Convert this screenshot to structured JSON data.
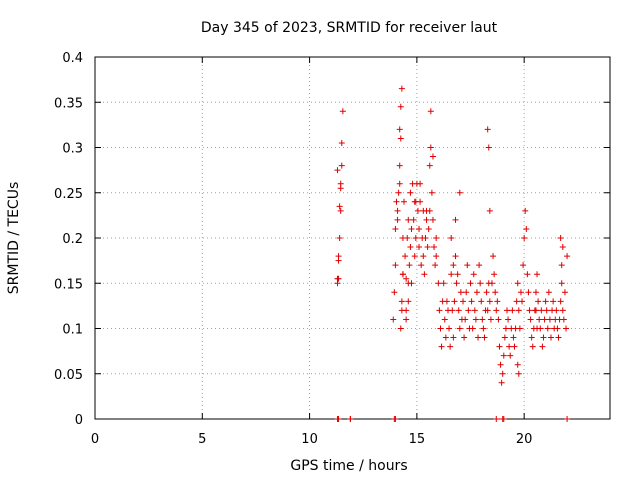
{
  "chart_data": {
    "type": "scatter",
    "title": "Day 345 of 2023, SRMTID for receiver laut",
    "xlabel": "GPS time / hours",
    "ylabel": "SRMTID / TECUs",
    "xlim": [
      0,
      24
    ],
    "ylim": [
      0,
      0.4
    ],
    "xticks": [
      0,
      5,
      10,
      15,
      20
    ],
    "xtick_labels": [
      "0",
      "5",
      "10",
      "15",
      "20"
    ],
    "yticks": [
      0,
      0.05,
      0.1,
      0.15,
      0.2,
      0.25,
      0.3,
      0.35,
      0.4
    ],
    "ytick_labels": [
      "0",
      "0.05",
      "0.1",
      "0.15",
      "0.2",
      "0.25",
      "0.3",
      "0.35",
      "0.4"
    ],
    "grid": true,
    "marker": "+",
    "color": "#e00000",
    "series": [
      {
        "name": "SRMTID",
        "x": [
          11.3,
          11.35,
          11.4,
          11.45,
          11.45,
          11.5,
          11.5,
          11.55,
          11.4,
          11.45,
          11.35,
          11.3,
          11.3,
          11.35,
          11.9,
          13.9,
          13.95,
          14.0,
          14.0,
          14.05,
          14.1,
          14.1,
          14.15,
          14.2,
          14.2,
          14.25,
          14.25,
          14.3,
          14.3,
          14.35,
          14.35,
          14.4,
          14.45,
          14.5,
          14.5,
          14.55,
          14.6,
          14.6,
          14.65,
          14.7,
          14.7,
          14.75,
          14.8,
          14.85,
          14.9,
          14.9,
          14.95,
          15.0,
          15.05,
          15.1,
          15.1,
          15.15,
          15.2,
          15.25,
          15.3,
          15.3,
          15.35,
          15.4,
          15.45,
          15.5,
          15.55,
          15.6,
          15.6,
          15.65,
          15.7,
          15.75,
          15.8,
          15.85,
          15.9,
          15.9,
          14.25,
          14.3,
          14.35,
          14.2,
          14.5,
          14.6,
          14.75,
          14.95,
          15.15,
          15.45,
          15.65,
          15.75,
          16.0,
          16.05,
          16.1,
          16.15,
          16.2,
          16.25,
          16.3,
          16.35,
          16.4,
          16.45,
          16.5,
          16.55,
          16.6,
          16.65,
          16.7,
          16.75,
          16.8,
          16.85,
          16.9,
          16.95,
          17.0,
          17.05,
          17.1,
          17.15,
          17.2,
          17.25,
          17.3,
          17.35,
          17.4,
          17.45,
          17.5,
          17.55,
          17.6,
          17.65,
          17.7,
          17.75,
          17.8,
          17.85,
          17.9,
          17.95,
          18.0,
          18.05,
          18.1,
          18.15,
          18.2,
          18.25,
          18.3,
          18.35,
          18.4,
          18.45,
          18.5,
          18.55,
          18.6,
          18.65,
          18.7,
          18.75,
          18.8,
          16.6,
          16.8,
          17.0,
          16.7,
          18.85,
          18.9,
          18.95,
          19.0,
          19.05,
          19.1,
          19.15,
          19.2,
          19.25,
          19.3,
          19.35,
          19.4,
          19.45,
          19.5,
          19.55,
          19.6,
          19.65,
          19.7,
          19.75,
          19.8,
          19.85,
          19.9,
          19.95,
          20.0,
          20.05,
          20.1,
          20.15,
          20.2,
          20.25,
          20.3,
          20.35,
          20.4,
          20.45,
          20.5,
          20.55,
          20.6,
          20.65,
          20.7,
          20.75,
          20.8,
          20.85,
          20.9,
          20.95,
          21.0,
          21.05,
          21.1,
          21.15,
          21.2,
          21.25,
          21.3,
          21.35,
          21.4,
          21.45,
          21.5,
          21.55,
          21.6,
          21.65,
          21.7,
          21.75,
          21.8,
          21.85,
          21.9,
          21.95,
          22.0,
          18.3,
          18.35,
          18.4,
          19.7,
          19.75,
          20.55,
          20.6,
          21.7,
          21.75,
          21.8,
          11.3,
          11.35,
          11.9,
          13.95,
          14.0,
          18.7,
          19.0,
          19.05,
          22.0
        ],
        "y": [
          0.15,
          0.175,
          0.2,
          0.23,
          0.26,
          0.28,
          0.305,
          0.34,
          0.235,
          0.255,
          0.155,
          0.275,
          0.155,
          0.18,
          0.0,
          0.11,
          0.14,
          0.17,
          0.21,
          0.24,
          0.22,
          0.23,
          0.25,
          0.26,
          0.28,
          0.31,
          0.345,
          0.365,
          0.12,
          0.16,
          0.2,
          0.24,
          0.18,
          0.155,
          0.12,
          0.2,
          0.22,
          0.15,
          0.17,
          0.25,
          0.19,
          0.21,
          0.26,
          0.22,
          0.24,
          0.18,
          0.2,
          0.26,
          0.23,
          0.21,
          0.19,
          0.24,
          0.17,
          0.2,
          0.18,
          0.23,
          0.16,
          0.2,
          0.22,
          0.19,
          0.21,
          0.23,
          0.28,
          0.3,
          0.25,
          0.22,
          0.19,
          0.17,
          0.2,
          0.18,
          0.1,
          0.13,
          0.16,
          0.32,
          0.11,
          0.13,
          0.15,
          0.24,
          0.26,
          0.23,
          0.34,
          0.29,
          0.15,
          0.12,
          0.1,
          0.08,
          0.13,
          0.15,
          0.11,
          0.09,
          0.13,
          0.12,
          0.1,
          0.08,
          0.16,
          0.12,
          0.09,
          0.13,
          0.18,
          0.15,
          0.16,
          0.12,
          0.1,
          0.14,
          0.11,
          0.13,
          0.09,
          0.11,
          0.14,
          0.17,
          0.12,
          0.1,
          0.15,
          0.13,
          0.1,
          0.16,
          0.12,
          0.11,
          0.14,
          0.09,
          0.17,
          0.15,
          0.13,
          0.11,
          0.1,
          0.09,
          0.12,
          0.14,
          0.12,
          0.15,
          0.13,
          0.11,
          0.15,
          0.18,
          0.16,
          0.14,
          0.12,
          0.13,
          0.11,
          0.2,
          0.22,
          0.25,
          0.17,
          0.08,
          0.06,
          0.04,
          0.05,
          0.07,
          0.09,
          0.1,
          0.12,
          0.11,
          0.08,
          0.07,
          0.1,
          0.12,
          0.09,
          0.08,
          0.1,
          0.13,
          0.15,
          0.12,
          0.1,
          0.14,
          0.13,
          0.17,
          0.2,
          0.23,
          0.21,
          0.16,
          0.14,
          0.12,
          0.11,
          0.09,
          0.08,
          0.1,
          0.12,
          0.14,
          0.16,
          0.13,
          0.11,
          0.1,
          0.12,
          0.08,
          0.09,
          0.11,
          0.13,
          0.12,
          0.1,
          0.14,
          0.11,
          0.09,
          0.12,
          0.13,
          0.1,
          0.11,
          0.12,
          0.1,
          0.09,
          0.11,
          0.13,
          0.15,
          0.12,
          0.11,
          0.14,
          0.1,
          0.18,
          0.32,
          0.3,
          0.23,
          0.06,
          0.05,
          0.12,
          0.1,
          0.2,
          0.17,
          0.19,
          0.0,
          0.0,
          0.0,
          0.0,
          0.0,
          0.0,
          0.0,
          0.0,
          0.0
        ]
      }
    ]
  }
}
